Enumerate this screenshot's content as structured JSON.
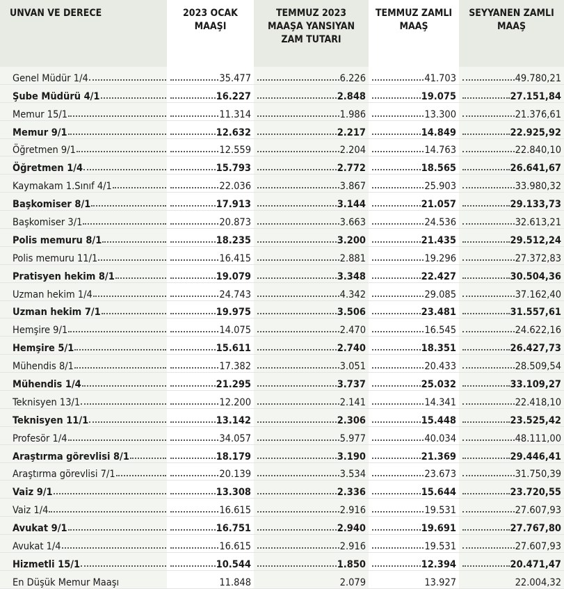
{
  "table": {
    "header": [
      "UNVAN VE DERECE",
      "2023 OCAK MAAŞI",
      "TEMMUZ 2023 MAAŞA YANSIYAN ZAM TUTARI",
      "TEMMUZ ZAMLI MAAŞ",
      "SEYYANEN ZAMLI MAAŞ"
    ],
    "rows": [
      [
        "Genel Müdür 1/4",
        "35.477",
        "6.226",
        "41.703",
        "49.780,21"
      ],
      [
        "Şube Müdürü 4/1",
        "16.227",
        "2.848",
        "19.075",
        "27.151,84"
      ],
      [
        "Memur 15/1",
        "11.314",
        "1.986",
        "13.300",
        "21.376,61"
      ],
      [
        "Memur 9/1",
        "12.632",
        "2.217",
        "14.849",
        "22.925,92"
      ],
      [
        "Öğretmen 9/1",
        "12.559",
        "2.204",
        "14.763",
        "22.840,10"
      ],
      [
        "Öğretmen 1/4",
        "15.793",
        "2.772",
        "18.565",
        "26.641,67"
      ],
      [
        "Kaymakam 1.Sınıf 4/1",
        "22.036",
        "3.867",
        "25.903",
        "33.980,32"
      ],
      [
        "Başkomiser 8/1",
        "17.913",
        "3.144",
        "21.057",
        "29.133,73"
      ],
      [
        "Başkomiser 3/1",
        "20.873",
        "3.663",
        "24.536",
        "32.613,21"
      ],
      [
        "Polis memuru 8/1",
        "18.235",
        "3.200",
        "21.435",
        "29.512,24"
      ],
      [
        "Polis memuru 11/1",
        "16.415",
        "2.881",
        "19.296",
        "27.372,83"
      ],
      [
        "Pratisyen hekim 8/1",
        "19.079",
        "3.348",
        "22.427",
        "30.504,36"
      ],
      [
        "Uzman hekim 1/4",
        "24.743",
        "4.342",
        "29.085",
        "37.162,40"
      ],
      [
        "Uzman hekim 7/1",
        "19.975",
        "3.506",
        "23.481",
        "31.557,61"
      ],
      [
        "Hemşire 9/1",
        "14.075",
        "2.470",
        "16.545",
        "24.622,16"
      ],
      [
        "Hemşire 5/1",
        "15.611",
        "2.740",
        "18.351",
        "26.427,73"
      ],
      [
        "Mühendis 8/1",
        "17.382",
        "3.051",
        "20.433",
        "28.509,54"
      ],
      [
        "Mühendis 1/4",
        "21.295",
        "3.737",
        "25.032",
        "33.109,27"
      ],
      [
        "Teknisyen 13/1",
        "12.200",
        "2.141",
        "14.341",
        "22.418,10"
      ],
      [
        "Teknisyen 11/1",
        "13.142",
        "2.306",
        "15.448",
        "23.525,42"
      ],
      [
        "Profesör 1/4",
        "34.057",
        "5.977",
        "40.034",
        "48.111,00"
      ],
      [
        "Araştırma görevlisi 8/1",
        "18.179",
        "3.190",
        "21.369",
        "29.446,41"
      ],
      [
        "Araştırma görevlisi 7/1",
        "20.139",
        "3.534",
        "23.673",
        "31.750,39"
      ],
      [
        "Vaiz 9/1",
        "13.308",
        "2.336",
        "15.644",
        "23.720,55"
      ],
      [
        "Vaiz 1/4",
        "16.615",
        "2.916",
        "19.531",
        "27.607,93"
      ],
      [
        "Avukat 9/1",
        "16.751",
        "2.940",
        "19.691",
        "27.767,80"
      ],
      [
        "Avukat 1/4",
        "16.615",
        "2.916",
        "19.531",
        "27.607,93"
      ],
      [
        "Hizmetli 15/1",
        "10.544",
        "1.850",
        "12.394",
        "20.471,47"
      ],
      [
        "En Düşük Memur Maaşı",
        "11.848",
        "2.079",
        "13.927",
        "22.004,32"
      ]
    ]
  }
}
